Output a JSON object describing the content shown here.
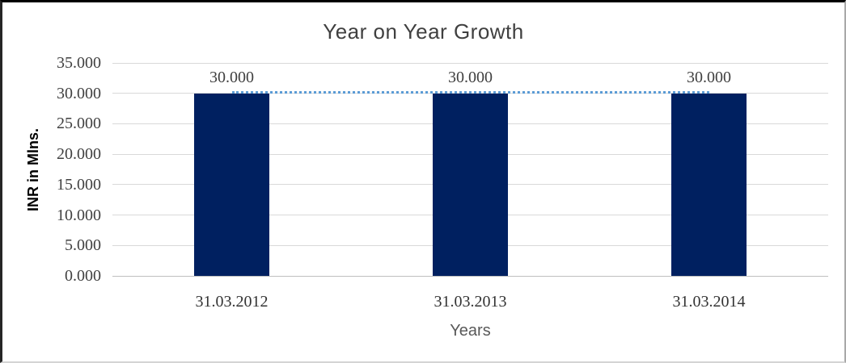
{
  "chart_data": {
    "type": "bar",
    "title": "Year on Year Growth",
    "xlabel": "Years",
    "ylabel": "INR in Mlns.",
    "categories": [
      "31.03.2012",
      "31.03.2013",
      "31.03.2014"
    ],
    "series": [
      {
        "name": "INR in Mlns.",
        "type": "bar",
        "values": [
          30,
          30,
          30
        ],
        "data_labels": [
          "30.000",
          "30.000",
          "30.000"
        ],
        "color": "#002060"
      },
      {
        "name": "trend",
        "type": "line",
        "line_style": "dotted",
        "values": [
          30,
          30,
          30
        ],
        "color": "#5b9bd5"
      }
    ],
    "yticks": [
      {
        "value": 35,
        "label": "35.000"
      },
      {
        "value": 30,
        "label": "30.000"
      },
      {
        "value": 25,
        "label": "25.000"
      },
      {
        "value": 20,
        "label": "20.000"
      },
      {
        "value": 15,
        "label": "15.000"
      },
      {
        "value": 10,
        "label": "10.000"
      },
      {
        "value": 5,
        "label": "5.000"
      },
      {
        "value": 0,
        "label": "0.000"
      }
    ],
    "ylim": [
      0,
      35
    ],
    "grid": true,
    "legend": "none",
    "colors": {
      "bar": "#002060",
      "trend_line": "#5b9bd5",
      "gridline": "#d9d9d9",
      "axis_line": "#bfbfbf",
      "title_text": "#404040",
      "tick_text": "#404040",
      "axis_title_text": "#595959",
      "y_axis_title_text": "#000000"
    }
  }
}
